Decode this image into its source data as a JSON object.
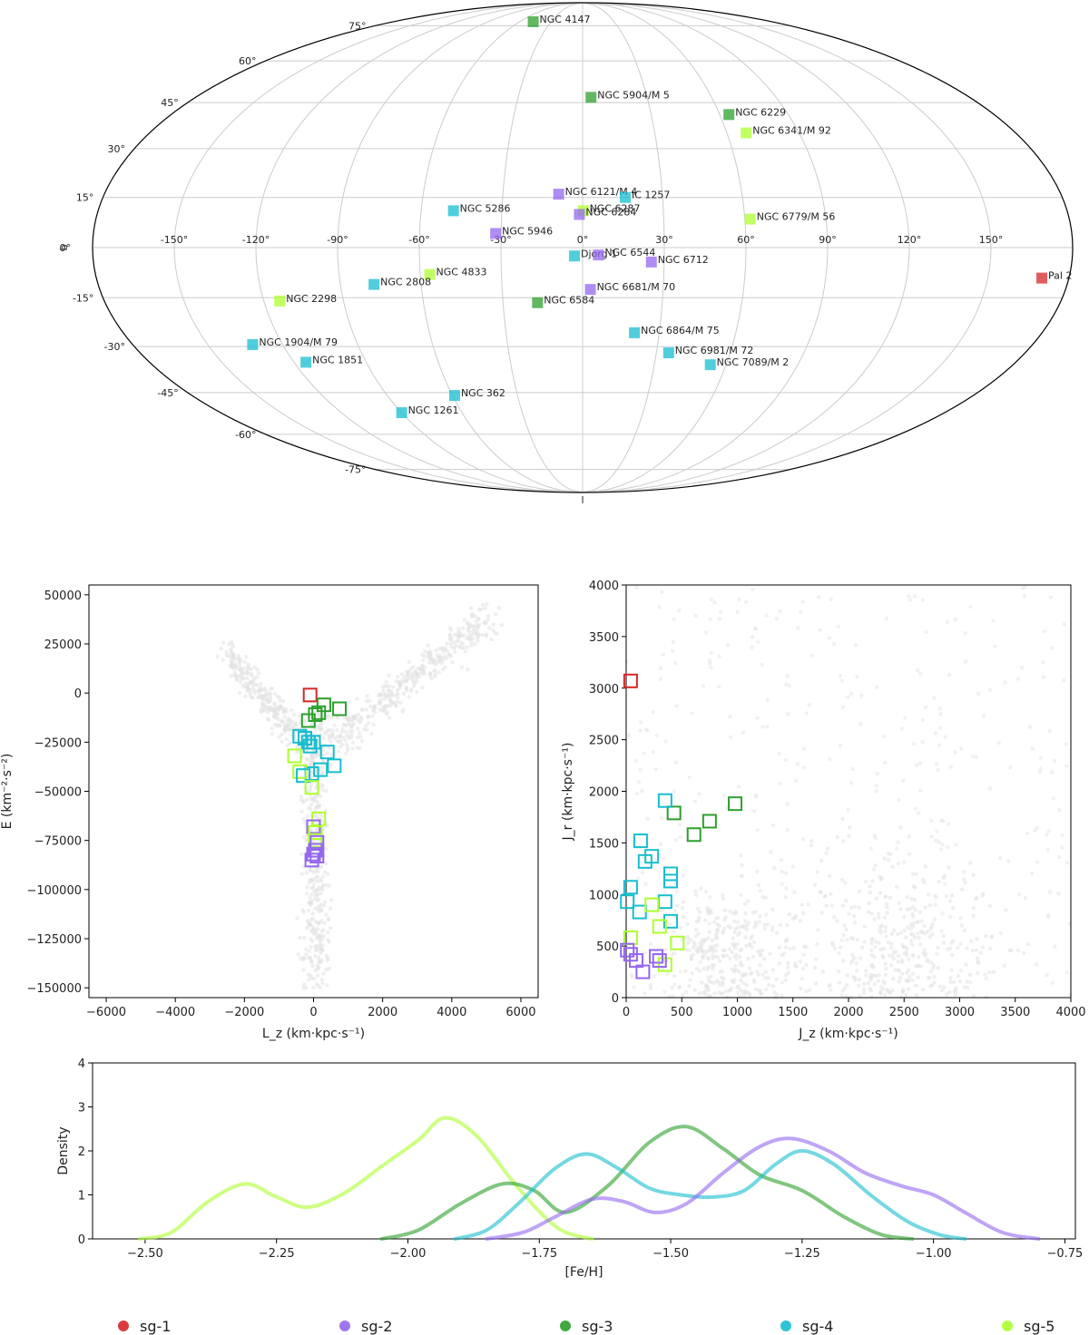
{
  "colors": {
    "sg-1": "#d62728",
    "sg-2": "#9467f0",
    "sg-3": "#2ca02c",
    "sg-4": "#17becf",
    "sg-5": "#adff2f"
  },
  "legend": [
    {
      "key": "sg-1",
      "label": "sg-1"
    },
    {
      "key": "sg-2",
      "label": "sg-2"
    },
    {
      "key": "sg-3",
      "label": "sg-3"
    },
    {
      "key": "sg-4",
      "label": "sg-4"
    },
    {
      "key": "sg-5",
      "label": "sg-5"
    }
  ],
  "chart_data": [
    {
      "type": "scatter",
      "projection": "mollweide",
      "xlabel": "l",
      "ylabel": "b",
      "lon_ticks": [
        -150,
        -120,
        -90,
        -60,
        -30,
        0,
        30,
        60,
        90,
        120,
        150
      ],
      "lat_ticks": [
        -75,
        -60,
        -45,
        -30,
        -15,
        0,
        15,
        30,
        45,
        60,
        75
      ],
      "lon_tick_labels": [
        "-150°",
        "-120°",
        "-90°",
        "-60°",
        "-30°",
        "0°",
        "30°",
        "60°",
        "90°",
        "120°",
        "150°"
      ],
      "lat_tick_labels": [
        "-75°",
        "-60°",
        "-45°",
        "-30°",
        "-15°",
        "0°",
        "15°",
        "30°",
        "45°",
        "60°",
        "75°"
      ],
      "points": [
        {
          "name": "NGC 4147",
          "l": -47,
          "b": 77,
          "g": "sg-3"
        },
        {
          "name": "NGC 5904/M 5",
          "l": 3.9,
          "b": 46.8,
          "g": "sg-3"
        },
        {
          "name": "NGC 6229",
          "l": 64,
          "b": 41,
          "g": "sg-3"
        },
        {
          "name": "NGC 6341/M 92",
          "l": 68,
          "b": 35,
          "g": "sg-5"
        },
        {
          "name": "NGC 6121/M 4",
          "l": -9,
          "b": 16,
          "g": "sg-2"
        },
        {
          "name": "IC 1257",
          "l": 16,
          "b": 15,
          "g": "sg-4"
        },
        {
          "name": "NGC 6287",
          "l": 0.2,
          "b": 11,
          "g": "sg-5"
        },
        {
          "name": "NGC 6284",
          "l": -1.2,
          "b": 9.9,
          "g": "sg-2"
        },
        {
          "name": "NGC 5286",
          "l": -48,
          "b": 11,
          "g": "sg-4"
        },
        {
          "name": "NGC 6779/M 56",
          "l": 62,
          "b": 8.5,
          "g": "sg-5"
        },
        {
          "name": "NGC 5946",
          "l": -32,
          "b": 4.2,
          "g": "sg-2"
        },
        {
          "name": "Djorg 1",
          "l": -3,
          "b": -2.5,
          "g": "sg-4"
        },
        {
          "name": "NGC 6544",
          "l": 5.8,
          "b": -2.2,
          "g": "sg-2"
        },
        {
          "name": "NGC 6712",
          "l": 25.3,
          "b": -4.3,
          "g": "sg-2"
        },
        {
          "name": "NGC 4833",
          "l": -56.5,
          "b": -8,
          "g": "sg-5"
        },
        {
          "name": "NGC 2808",
          "l": -77.5,
          "b": -11,
          "g": "sg-4"
        },
        {
          "name": "NGC 6681/M 70",
          "l": 2.9,
          "b": -12.5,
          "g": "sg-2"
        },
        {
          "name": "NGC 2298",
          "l": -114,
          "b": -16,
          "g": "sg-5"
        },
        {
          "name": "NGC 6584",
          "l": -17,
          "b": -16.5,
          "g": "sg-3"
        },
        {
          "name": "Pal 2",
          "l": 170,
          "b": -9.1,
          "g": "sg-1"
        },
        {
          "name": "NGC 6864/M 75",
          "l": 20.3,
          "b": -25.7,
          "g": "sg-4"
        },
        {
          "name": "NGC 1904/M 79",
          "l": -132,
          "b": -29.4,
          "g": "sg-4"
        },
        {
          "name": "NGC 6981/M 72",
          "l": 35,
          "b": -32,
          "g": "sg-4"
        },
        {
          "name": "NGC 1851",
          "l": -115,
          "b": -35,
          "g": "sg-4"
        },
        {
          "name": "NGC 7089/M 2",
          "l": 53.4,
          "b": -35.8,
          "g": "sg-4"
        },
        {
          "name": "NGC 362",
          "l": -59,
          "b": -46,
          "g": "sg-4"
        },
        {
          "name": "NGC 1261",
          "l": -90,
          "b": -52,
          "g": "sg-4"
        }
      ]
    },
    {
      "type": "scatter",
      "xlabel": "L_z (km·kpc·s⁻¹)",
      "ylabel": "E (km⁻²·s⁻²)",
      "xlim": [
        -6500,
        6500
      ],
      "ylim": [
        -155000,
        55000
      ],
      "x_ticks": [
        -6000,
        -4000,
        -2000,
        0,
        2000,
        4000,
        6000
      ],
      "y_ticks": [
        50000,
        25000,
        0,
        -25000,
        -50000,
        -75000,
        -100000,
        -125000,
        -150000
      ],
      "x_tick_labels": [
        "−6000",
        "−4000",
        "−2000",
        "0",
        "2000",
        "4000",
        "6000"
      ],
      "y_tick_labels": [
        "50000",
        "25000",
        "0",
        "−25000",
        "−50000",
        "−75000",
        "−100000",
        "−125000",
        "−150000"
      ],
      "points": [
        {
          "x": -100,
          "y": -1000,
          "g": "sg-1"
        },
        {
          "x": 300,
          "y": -6000,
          "g": "sg-3"
        },
        {
          "x": 750,
          "y": -8000,
          "g": "sg-3"
        },
        {
          "x": 150,
          "y": -10000,
          "g": "sg-3"
        },
        {
          "x": 50,
          "y": -11000,
          "g": "sg-3"
        },
        {
          "x": -150,
          "y": -14000,
          "g": "sg-3"
        },
        {
          "x": -400,
          "y": -22000,
          "g": "sg-4"
        },
        {
          "x": -250,
          "y": -23000,
          "g": "sg-4"
        },
        {
          "x": -150,
          "y": -25000,
          "g": "sg-4"
        },
        {
          "x": 0,
          "y": -25000,
          "g": "sg-4"
        },
        {
          "x": -100,
          "y": -27000,
          "g": "sg-4"
        },
        {
          "x": 400,
          "y": -30000,
          "g": "sg-4"
        },
        {
          "x": -550,
          "y": -32000,
          "g": "sg-5"
        },
        {
          "x": 600,
          "y": -37000,
          "g": "sg-4"
        },
        {
          "x": 200,
          "y": -39000,
          "g": "sg-4"
        },
        {
          "x": -50,
          "y": -41000,
          "g": "sg-4"
        },
        {
          "x": -400,
          "y": -40000,
          "g": "sg-5"
        },
        {
          "x": -300,
          "y": -42000,
          "g": "sg-4"
        },
        {
          "x": -50,
          "y": -48000,
          "g": "sg-5"
        },
        {
          "x": 150,
          "y": -64000,
          "g": "sg-5"
        },
        {
          "x": 0,
          "y": -68000,
          "g": "sg-2"
        },
        {
          "x": 50,
          "y": -71000,
          "g": "sg-5"
        },
        {
          "x": 50,
          "y": -75000,
          "g": "sg-5"
        },
        {
          "x": 100,
          "y": -76000,
          "g": "sg-2"
        },
        {
          "x": 50,
          "y": -80000,
          "g": "sg-2"
        },
        {
          "x": 100,
          "y": -83000,
          "g": "sg-2"
        },
        {
          "x": 0,
          "y": -82000,
          "g": "sg-2"
        },
        {
          "x": -50,
          "y": -85000,
          "g": "sg-2"
        }
      ]
    },
    {
      "type": "scatter",
      "xlabel": "J_z (km·kpc·s⁻¹)",
      "ylabel": "J_r (km·kpc·s⁻¹)",
      "xlim": [
        0,
        4000
      ],
      "ylim": [
        0,
        4000
      ],
      "x_ticks": [
        0,
        500,
        1000,
        1500,
        2000,
        2500,
        3000,
        3500,
        4000
      ],
      "y_ticks": [
        0,
        500,
        1000,
        1500,
        2000,
        2500,
        3000,
        3500,
        4000
      ],
      "x_tick_labels": [
        "0",
        "500",
        "1000",
        "1500",
        "2000",
        "2500",
        "3000",
        "3500",
        "4000"
      ],
      "y_tick_labels": [
        "0",
        "500",
        "1000",
        "1500",
        "2000",
        "2500",
        "3000",
        "3500",
        "4000"
      ],
      "points": [
        {
          "x": 40,
          "y": 3070,
          "g": "sg-1"
        },
        {
          "x": 980,
          "y": 1880,
          "g": "sg-3"
        },
        {
          "x": 430,
          "y": 1790,
          "g": "sg-3"
        },
        {
          "x": 750,
          "y": 1710,
          "g": "sg-3"
        },
        {
          "x": 610,
          "y": 1580,
          "g": "sg-3"
        },
        {
          "x": 350,
          "y": 1910,
          "g": "sg-4"
        },
        {
          "x": 130,
          "y": 1520,
          "g": "sg-4"
        },
        {
          "x": 230,
          "y": 1370,
          "g": "sg-4"
        },
        {
          "x": 170,
          "y": 1320,
          "g": "sg-4"
        },
        {
          "x": 400,
          "y": 1200,
          "g": "sg-4"
        },
        {
          "x": 400,
          "y": 1130,
          "g": "sg-4"
        },
        {
          "x": 40,
          "y": 1070,
          "g": "sg-4"
        },
        {
          "x": 10,
          "y": 930,
          "g": "sg-4"
        },
        {
          "x": 350,
          "y": 930,
          "g": "sg-4"
        },
        {
          "x": 120,
          "y": 830,
          "g": "sg-4"
        },
        {
          "x": 400,
          "y": 740,
          "g": "sg-4"
        },
        {
          "x": 230,
          "y": 900,
          "g": "sg-5"
        },
        {
          "x": 300,
          "y": 690,
          "g": "sg-5"
        },
        {
          "x": 40,
          "y": 580,
          "g": "sg-5"
        },
        {
          "x": 460,
          "y": 530,
          "g": "sg-5"
        },
        {
          "x": 350,
          "y": 320,
          "g": "sg-5"
        },
        {
          "x": 40,
          "y": 420,
          "g": "sg-2"
        },
        {
          "x": 90,
          "y": 360,
          "g": "sg-2"
        },
        {
          "x": 270,
          "y": 400,
          "g": "sg-2"
        },
        {
          "x": 300,
          "y": 360,
          "g": "sg-2"
        },
        {
          "x": 150,
          "y": 250,
          "g": "sg-2"
        },
        {
          "x": 10,
          "y": 460,
          "g": "sg-2"
        }
      ]
    },
    {
      "type": "line",
      "xlabel": "[Fe/H]",
      "ylabel": "Density",
      "xlim": [
        -2.6,
        -0.73
      ],
      "ylim": [
        0,
        4
      ],
      "x_ticks": [
        -2.5,
        -2.25,
        -2.0,
        -1.75,
        -1.5,
        -1.25,
        -1.0,
        -0.75
      ],
      "y_ticks": [
        0,
        1,
        2,
        3,
        4
      ],
      "x_tick_labels": [
        "−2.50",
        "−2.25",
        "−2.00",
        "−1.75",
        "−1.50",
        "−1.25",
        "−1.00",
        "−0.75"
      ],
      "y_tick_labels": [
        "0",
        "1",
        "2",
        "3",
        "4"
      ],
      "series": [
        {
          "name": "sg-5",
          "x": [
            -2.51,
            -2.45,
            -2.38,
            -2.31,
            -2.25,
            -2.19,
            -2.12,
            -2.05,
            -1.98,
            -1.93,
            -1.87,
            -1.8,
            -1.74,
            -1.7,
            -1.65
          ],
          "y": [
            0.0,
            0.15,
            0.85,
            1.25,
            0.95,
            0.72,
            1.05,
            1.65,
            2.25,
            2.75,
            2.35,
            1.3,
            0.5,
            0.15,
            0.0
          ]
        },
        {
          "name": "sg-3",
          "x": [
            -2.05,
            -1.98,
            -1.9,
            -1.82,
            -1.76,
            -1.7,
            -1.62,
            -1.54,
            -1.47,
            -1.4,
            -1.33,
            -1.25,
            -1.17,
            -1.1,
            -1.04
          ],
          "y": [
            0.0,
            0.2,
            0.8,
            1.25,
            1.1,
            0.6,
            1.2,
            2.2,
            2.55,
            2.05,
            1.45,
            1.1,
            0.5,
            0.1,
            0.0
          ]
        },
        {
          "name": "sg-4",
          "x": [
            -1.91,
            -1.85,
            -1.79,
            -1.72,
            -1.66,
            -1.6,
            -1.54,
            -1.48,
            -1.42,
            -1.36,
            -1.3,
            -1.25,
            -1.19,
            -1.12,
            -1.05,
            -0.99,
            -0.94
          ],
          "y": [
            0.0,
            0.2,
            0.8,
            1.6,
            1.93,
            1.6,
            1.15,
            1.0,
            0.95,
            1.1,
            1.7,
            2.0,
            1.7,
            1.0,
            0.4,
            0.1,
            0.0
          ]
        },
        {
          "name": "sg-2",
          "x": [
            -1.85,
            -1.78,
            -1.72,
            -1.65,
            -1.59,
            -1.53,
            -1.47,
            -1.4,
            -1.33,
            -1.27,
            -1.2,
            -1.13,
            -1.06,
            -1.0,
            -0.94,
            -0.87,
            -0.8
          ],
          "y": [
            0.0,
            0.15,
            0.5,
            0.9,
            0.85,
            0.6,
            0.8,
            1.5,
            2.1,
            2.28,
            2.0,
            1.5,
            1.2,
            1.0,
            0.6,
            0.15,
            0.0
          ]
        }
      ]
    }
  ]
}
